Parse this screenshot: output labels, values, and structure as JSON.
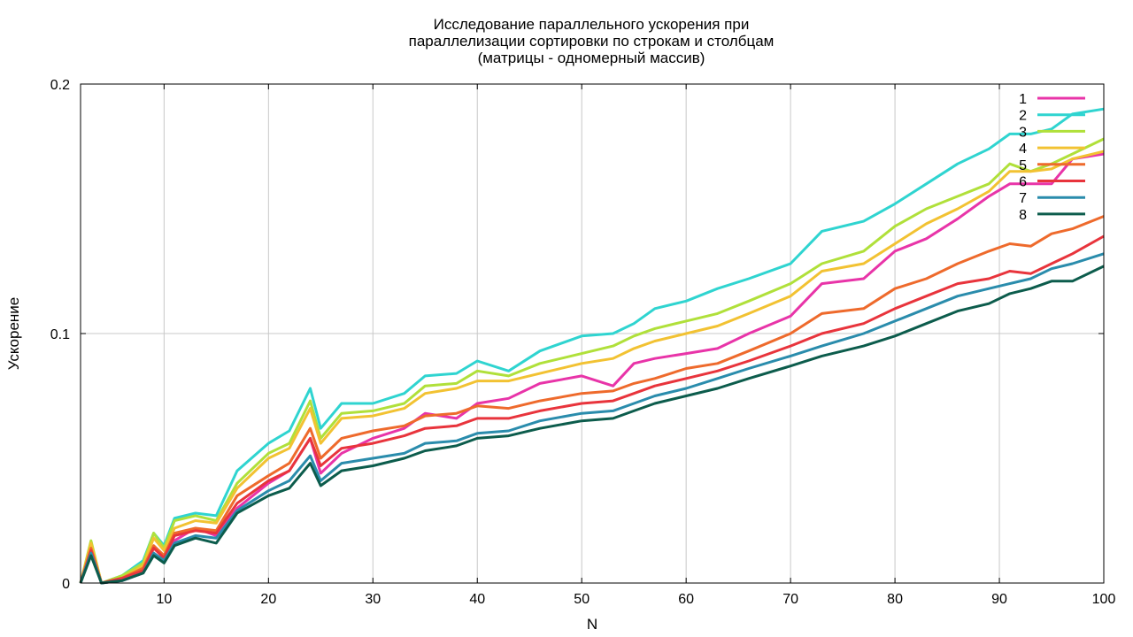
{
  "chart_data": {
    "type": "line",
    "title": [
      "Исследование параллельного ускорения при",
      "параллелизации сортировки по строкам и столбцам",
      "(матрицы - одномерный массив)"
    ],
    "xlabel": "N",
    "ylabel": "Ускорение",
    "xlim": [
      2,
      100
    ],
    "ylim": [
      0,
      0.2
    ],
    "xticks": [
      10,
      20,
      30,
      40,
      50,
      60,
      70,
      80,
      90,
      100
    ],
    "yticks": [
      0,
      0.1,
      0.2
    ],
    "ytick_labels": [
      "0",
      "0.1",
      "0.2"
    ],
    "grid": true,
    "legend_position": "top-right",
    "x": [
      2,
      3,
      4,
      6,
      8,
      9,
      10,
      11,
      13,
      15,
      17,
      20,
      22,
      24,
      25,
      27,
      30,
      33,
      35,
      38,
      40,
      43,
      46,
      50,
      53,
      55,
      57,
      60,
      63,
      66,
      70,
      73,
      77,
      80,
      83,
      86,
      89,
      91,
      93,
      95,
      97,
      100
    ],
    "series": [
      {
        "name": "1",
        "color": "#e834a8",
        "values": [
          0,
          0.012,
          0,
          0.001,
          0.004,
          0.012,
          0.009,
          0.017,
          0.022,
          0.019,
          0.03,
          0.04,
          0.045,
          0.058,
          0.044,
          0.052,
          0.058,
          0.062,
          0.068,
          0.066,
          0.072,
          0.074,
          0.08,
          0.083,
          0.079,
          0.088,
          0.09,
          0.092,
          0.094,
          0.1,
          0.107,
          0.12,
          0.122,
          0.133,
          0.138,
          0.146,
          0.155,
          0.16,
          0.16,
          0.16,
          0.17,
          0.172
        ]
      },
      {
        "name": "2",
        "color": "#2fd4d0",
        "values": [
          0,
          0.015,
          0,
          0.003,
          0.009,
          0.02,
          0.015,
          0.026,
          0.028,
          0.027,
          0.045,
          0.056,
          0.061,
          0.078,
          0.062,
          0.072,
          0.072,
          0.076,
          0.083,
          0.084,
          0.089,
          0.085,
          0.093,
          0.099,
          0.1,
          0.104,
          0.11,
          0.113,
          0.118,
          0.122,
          0.128,
          0.141,
          0.145,
          0.152,
          0.16,
          0.168,
          0.174,
          0.18,
          0.18,
          0.182,
          0.188,
          0.19
        ]
      },
      {
        "name": "3",
        "color": "#b0e03a",
        "values": [
          0,
          0.017,
          0,
          0.003,
          0.008,
          0.02,
          0.014,
          0.025,
          0.027,
          0.025,
          0.04,
          0.052,
          0.056,
          0.073,
          0.058,
          0.068,
          0.069,
          0.072,
          0.079,
          0.08,
          0.085,
          0.083,
          0.088,
          0.092,
          0.095,
          0.099,
          0.102,
          0.105,
          0.108,
          0.113,
          0.12,
          0.128,
          0.133,
          0.143,
          0.15,
          0.155,
          0.16,
          0.168,
          0.165,
          0.168,
          0.172,
          0.178
        ]
      },
      {
        "name": "4",
        "color": "#f2c232",
        "values": [
          0,
          0.016,
          0,
          0.002,
          0.007,
          0.018,
          0.013,
          0.022,
          0.025,
          0.024,
          0.038,
          0.05,
          0.054,
          0.07,
          0.056,
          0.066,
          0.067,
          0.07,
          0.076,
          0.078,
          0.081,
          0.081,
          0.084,
          0.088,
          0.09,
          0.094,
          0.097,
          0.1,
          0.103,
          0.108,
          0.115,
          0.125,
          0.128,
          0.136,
          0.144,
          0.15,
          0.157,
          0.165,
          0.165,
          0.166,
          0.17,
          0.173
        ]
      },
      {
        "name": "5",
        "color": "#ee6a2c",
        "values": [
          0,
          0.014,
          0,
          0.002,
          0.006,
          0.015,
          0.011,
          0.02,
          0.022,
          0.021,
          0.035,
          0.043,
          0.048,
          0.062,
          0.05,
          0.058,
          0.061,
          0.063,
          0.067,
          0.068,
          0.071,
          0.07,
          0.073,
          0.076,
          0.077,
          0.08,
          0.082,
          0.086,
          0.088,
          0.093,
          0.1,
          0.108,
          0.11,
          0.118,
          0.122,
          0.128,
          0.133,
          0.136,
          0.135,
          0.14,
          0.142,
          0.147
        ]
      },
      {
        "name": "6",
        "color": "#e8343c",
        "values": [
          0,
          0.013,
          0,
          0.002,
          0.005,
          0.014,
          0.01,
          0.019,
          0.021,
          0.02,
          0.032,
          0.041,
          0.045,
          0.058,
          0.047,
          0.054,
          0.056,
          0.059,
          0.062,
          0.063,
          0.066,
          0.066,
          0.069,
          0.072,
          0.073,
          0.076,
          0.079,
          0.082,
          0.085,
          0.089,
          0.095,
          0.1,
          0.104,
          0.11,
          0.115,
          0.12,
          0.122,
          0.125,
          0.124,
          0.128,
          0.132,
          0.139
        ]
      },
      {
        "name": "7",
        "color": "#2a8cac",
        "values": [
          0,
          0.012,
          0,
          0.001,
          0.004,
          0.012,
          0.009,
          0.016,
          0.019,
          0.018,
          0.029,
          0.037,
          0.041,
          0.051,
          0.041,
          0.048,
          0.05,
          0.052,
          0.056,
          0.057,
          0.06,
          0.061,
          0.065,
          0.068,
          0.069,
          0.072,
          0.075,
          0.078,
          0.082,
          0.086,
          0.091,
          0.095,
          0.1,
          0.105,
          0.11,
          0.115,
          0.118,
          0.12,
          0.122,
          0.126,
          0.128,
          0.132
        ]
      },
      {
        "name": "8",
        "color": "#0c5c4c",
        "values": [
          0,
          0.011,
          0,
          0.001,
          0.004,
          0.011,
          0.008,
          0.015,
          0.018,
          0.016,
          0.028,
          0.035,
          0.038,
          0.048,
          0.039,
          0.045,
          0.047,
          0.05,
          0.053,
          0.055,
          0.058,
          0.059,
          0.062,
          0.065,
          0.066,
          0.069,
          0.072,
          0.075,
          0.078,
          0.082,
          0.087,
          0.091,
          0.095,
          0.099,
          0.104,
          0.109,
          0.112,
          0.116,
          0.118,
          0.121,
          0.121,
          0.127
        ]
      }
    ]
  }
}
